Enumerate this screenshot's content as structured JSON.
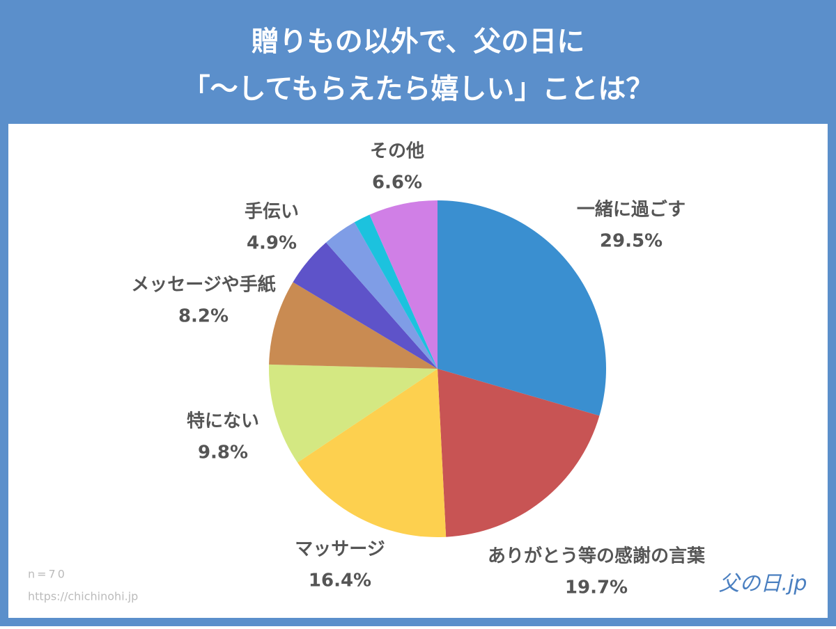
{
  "chart_data": {
    "type": "pie",
    "title": [
      "贈りもの以外で、父の日に",
      "「〜してもらえたら嬉しい」ことは？"
    ],
    "categories": [
      "一緒に過ごす",
      "ありがとう等の感謝の言葉",
      "マッサージ",
      "特にない",
      "メッセージや手紙",
      "手伝い",
      null,
      null,
      "その他"
    ],
    "values": [
      29.5,
      19.7,
      16.4,
      9.8,
      8.2,
      4.9,
      3.3,
      1.6,
      6.6
    ],
    "value_labels": [
      "29.5%",
      "19.7%",
      "16.4%",
      "9.8%",
      "8.2%",
      "4.9%",
      null,
      null,
      "6.6%"
    ],
    "colors": [
      "#3a8fd0",
      "#c85454",
      "#fdd04f",
      "#d4e882",
      "#c98b52",
      "#5e53c9",
      "#7f9de6",
      "#1cc2de",
      "#d07fe6"
    ],
    "notes": [
      "n=70",
      "https://chichinohi.jp"
    ],
    "logo": "父の日.jp"
  }
}
